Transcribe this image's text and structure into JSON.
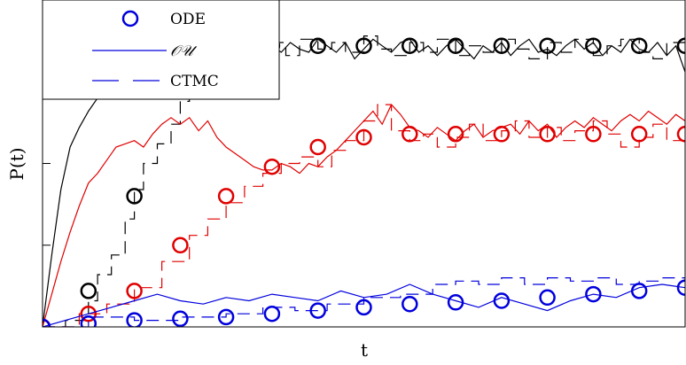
{
  "chart_data": {
    "type": "line",
    "xlabel": "t",
    "ylabel": "P(t)",
    "xlim": [
      0,
      14
    ],
    "ylim": [
      0,
      1
    ],
    "grid": false,
    "legend": {
      "placement": "top-left",
      "entries": [
        {
          "label": "ODE",
          "style": "circle",
          "color": "#0000dd"
        },
        {
          "label": "𝒪𝒰",
          "style": "solid",
          "color": "#0000dd"
        },
        {
          "label": "CTMC",
          "style": "dashed",
          "color": "#0000dd"
        }
      ]
    },
    "colors": {
      "black": "#000000",
      "red": "#e00000",
      "blue": "#0000dd"
    },
    "series": [
      {
        "color": "#000000",
        "ode": {
          "x": [
            0,
            1,
            2,
            3,
            4,
            5,
            6,
            7,
            8,
            9,
            10,
            11,
            12,
            13,
            14
          ],
          "y": [
            0,
            0.11,
            0.4,
            0.73,
            0.84,
            0.86,
            0.86,
            0.86,
            0.86,
            0.86,
            0.86,
            0.86,
            0.86,
            0.86,
            0.86
          ]
        },
        "ou": {
          "x": [
            0,
            0.2,
            0.4,
            0.6,
            0.8,
            1.0,
            1.2,
            1.4,
            1.6,
            1.8,
            2.0,
            2.2,
            2.4,
            2.6,
            2.8,
            3.0,
            3.2,
            3.4,
            3.6,
            3.8,
            4.0,
            4.2,
            4.4,
            4.6,
            4.8,
            5.0,
            5.2,
            5.4,
            5.6,
            5.8,
            6.0,
            6.2,
            6.4,
            6.6,
            6.8,
            7.0,
            7.2,
            7.4,
            7.6,
            7.8,
            8.0,
            8.2,
            8.4,
            8.6,
            8.8,
            9.0,
            9.2,
            9.4,
            9.6,
            9.8,
            10.0,
            10.2,
            10.4,
            10.6,
            10.8,
            11.0,
            11.2,
            11.4,
            11.6,
            11.8,
            12.0,
            12.2,
            12.4,
            12.6,
            12.8,
            13.0,
            13.2,
            13.4,
            13.6,
            13.8,
            14.0
          ],
          "y": [
            0,
            0.22,
            0.42,
            0.55,
            0.61,
            0.66,
            0.7,
            0.74,
            0.78,
            0.8,
            0.79,
            0.83,
            0.8,
            0.84,
            0.87,
            0.83,
            0.85,
            0.89,
            0.92,
            0.86,
            0.87,
            0.84,
            0.88,
            0.85,
            0.83,
            0.86,
            0.84,
            0.87,
            0.85,
            0.84,
            0.88,
            0.86,
            0.84,
            0.87,
            0.82,
            0.85,
            0.88,
            0.86,
            0.84,
            0.87,
            0.88,
            0.84,
            0.86,
            0.83,
            0.86,
            0.88,
            0.85,
            0.82,
            0.86,
            0.84,
            0.87,
            0.83,
            0.86,
            0.88,
            0.84,
            0.85,
            0.83,
            0.86,
            0.88,
            0.85,
            0.87,
            0.83,
            0.86,
            0.84,
            0.88,
            0.85,
            0.84,
            0.87,
            0.83,
            0.86,
            0.78
          ]
        },
        "ctmc": {
          "x": [
            0,
            0.5,
            1.0,
            1.2,
            1.5,
            1.8,
            2.0,
            2.2,
            2.5,
            2.8,
            3.0,
            3.2,
            3.5,
            3.8,
            4.0,
            4.3,
            4.6,
            5.0,
            5.3,
            5.6,
            6.0,
            6.3,
            6.6,
            7.0,
            7.3,
            7.6,
            8.0,
            8.3,
            8.6,
            9.0,
            9.3,
            9.6,
            10.0,
            10.3,
            10.6,
            11.0,
            11.3,
            11.6,
            12.0,
            12.3,
            12.6,
            13.0,
            13.3,
            13.6,
            14.0
          ],
          "y": [
            0,
            0.02,
            0.08,
            0.16,
            0.22,
            0.33,
            0.42,
            0.5,
            0.56,
            0.62,
            0.69,
            0.73,
            0.78,
            0.86,
            0.9,
            0.84,
            0.89,
            0.87,
            0.83,
            0.88,
            0.85,
            0.87,
            0.84,
            0.89,
            0.85,
            0.83,
            0.87,
            0.84,
            0.88,
            0.83,
            0.86,
            0.84,
            0.88,
            0.85,
            0.82,
            0.87,
            0.84,
            0.88,
            0.83,
            0.86,
            0.88,
            0.84,
            0.82,
            0.87,
            0.85
          ]
        }
      },
      {
        "color": "#e00000",
        "ode": {
          "x": [
            0,
            1,
            2,
            3,
            4,
            5,
            6,
            7,
            8,
            9,
            10,
            11,
            12,
            13,
            14
          ],
          "y": [
            0,
            0.04,
            0.11,
            0.25,
            0.4,
            0.49,
            0.55,
            0.58,
            0.59,
            0.59,
            0.59,
            0.59,
            0.59,
            0.59,
            0.59
          ]
        },
        "ou": {
          "x": [
            0,
            0.2,
            0.4,
            0.6,
            0.8,
            1.0,
            1.2,
            1.4,
            1.6,
            1.8,
            2.0,
            2.2,
            2.4,
            2.6,
            2.8,
            3.0,
            3.2,
            3.4,
            3.6,
            3.8,
            4.0,
            4.2,
            4.4,
            4.6,
            4.8,
            5.0,
            5.2,
            5.4,
            5.6,
            5.8,
            6.0,
            6.2,
            6.4,
            6.6,
            6.8,
            7.0,
            7.2,
            7.4,
            7.6,
            7.8,
            8.0,
            8.2,
            8.4,
            8.6,
            8.8,
            9.0,
            9.2,
            9.4,
            9.6,
            9.8,
            10.0,
            10.2,
            10.4,
            10.6,
            10.8,
            11.0,
            11.2,
            11.4,
            11.6,
            11.8,
            12.0,
            12.2,
            12.4,
            12.6,
            12.8,
            13.0,
            13.2,
            13.4,
            13.6,
            13.8,
            14.0
          ],
          "y": [
            0,
            0.1,
            0.2,
            0.29,
            0.37,
            0.44,
            0.47,
            0.51,
            0.55,
            0.56,
            0.57,
            0.55,
            0.59,
            0.62,
            0.64,
            0.62,
            0.64,
            0.6,
            0.63,
            0.58,
            0.55,
            0.53,
            0.51,
            0.49,
            0.48,
            0.48,
            0.5,
            0.49,
            0.47,
            0.5,
            0.49,
            0.52,
            0.54,
            0.57,
            0.6,
            0.63,
            0.66,
            0.62,
            0.68,
            0.65,
            0.61,
            0.6,
            0.58,
            0.61,
            0.59,
            0.57,
            0.6,
            0.62,
            0.58,
            0.6,
            0.61,
            0.62,
            0.59,
            0.63,
            0.6,
            0.62,
            0.58,
            0.61,
            0.63,
            0.61,
            0.64,
            0.62,
            0.6,
            0.63,
            0.65,
            0.63,
            0.66,
            0.64,
            0.62,
            0.65,
            0.63
          ]
        },
        "ctmc": {
          "x": [
            0,
            0.8,
            1.4,
            2.0,
            2.6,
            3.2,
            3.6,
            4.0,
            4.4,
            4.8,
            5.2,
            5.6,
            6.0,
            6.3,
            6.6,
            7.0,
            7.3,
            7.6,
            8.0,
            8.3,
            8.6,
            9.0,
            9.3,
            9.6,
            10.0,
            10.3,
            10.6,
            11.0,
            11.3,
            11.6,
            12.0,
            12.3,
            12.6,
            13.0,
            13.3,
            13.6,
            14.0
          ],
          "y": [
            0,
            0.04,
            0.07,
            0.12,
            0.2,
            0.28,
            0.33,
            0.38,
            0.43,
            0.47,
            0.5,
            0.52,
            0.49,
            0.54,
            0.57,
            0.63,
            0.68,
            0.6,
            0.57,
            0.59,
            0.55,
            0.58,
            0.62,
            0.57,
            0.6,
            0.63,
            0.58,
            0.61,
            0.57,
            0.6,
            0.63,
            0.59,
            0.55,
            0.58,
            0.62,
            0.57,
            0.59
          ]
        }
      },
      {
        "color": "#0000dd",
        "ode": {
          "x": [
            0,
            1,
            2,
            3,
            4,
            5,
            6,
            7,
            8,
            9,
            10,
            11,
            12,
            13,
            14
          ],
          "y": [
            0,
            0.01,
            0.02,
            0.025,
            0.03,
            0.04,
            0.05,
            0.06,
            0.07,
            0.075,
            0.08,
            0.09,
            0.1,
            0.11,
            0.12
          ]
        },
        "ou": {
          "x": [
            0,
            0.5,
            1.0,
            1.5,
            2.0,
            2.5,
            3.0,
            3.5,
            4.0,
            4.5,
            5.0,
            5.5,
            6.0,
            6.5,
            7.0,
            7.5,
            8.0,
            8.5,
            9.0,
            9.5,
            10.0,
            10.5,
            11.0,
            11.5,
            12.0,
            12.5,
            13.0,
            13.5,
            14.0
          ],
          "y": [
            0,
            0.02,
            0.04,
            0.06,
            0.08,
            0.1,
            0.08,
            0.07,
            0.09,
            0.08,
            0.1,
            0.09,
            0.08,
            0.11,
            0.09,
            0.1,
            0.13,
            0.1,
            0.08,
            0.06,
            0.09,
            0.07,
            0.05,
            0.08,
            0.1,
            0.09,
            0.12,
            0.13,
            0.12
          ]
        },
        "ctmc": {
          "x": [
            0,
            1.0,
            2.0,
            3.0,
            4.0,
            4.8,
            5.5,
            6.2,
            7.0,
            7.8,
            8.5,
            9.0,
            9.5,
            10.0,
            10.5,
            11.0,
            11.5,
            12.0,
            12.5,
            13.0,
            13.5,
            14.0
          ],
          "y": [
            0,
            0.03,
            0.02,
            0.03,
            0.04,
            0.06,
            0.05,
            0.07,
            0.09,
            0.1,
            0.13,
            0.14,
            0.13,
            0.15,
            0.13,
            0.15,
            0.14,
            0.15,
            0.13,
            0.14,
            0.15,
            0.14
          ]
        }
      }
    ]
  }
}
